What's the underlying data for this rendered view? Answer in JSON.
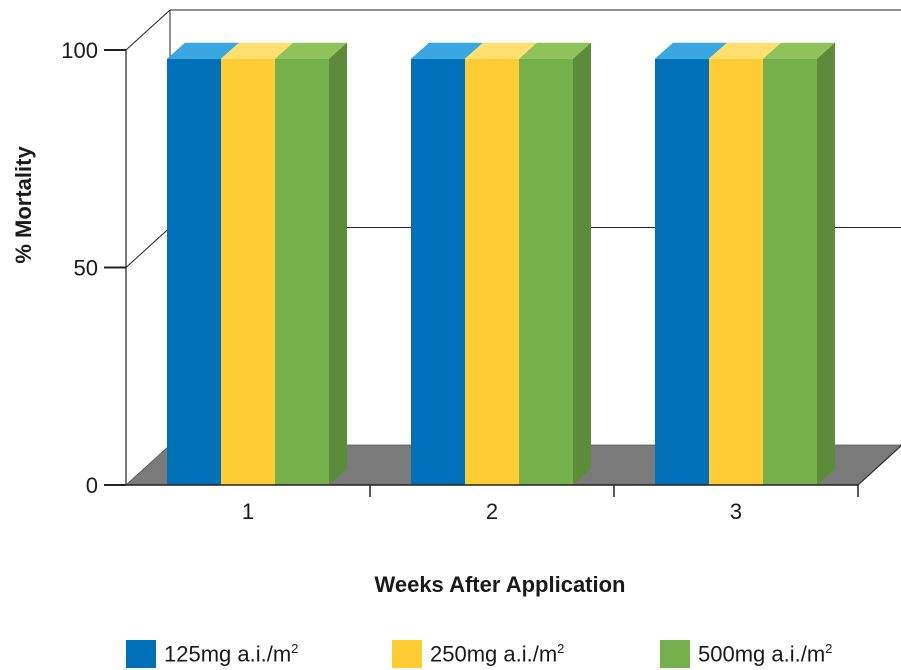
{
  "chart_data": {
    "type": "bar",
    "style": "3d-clustered",
    "categories": [
      "1",
      "2",
      "3"
    ],
    "series": [
      {
        "name": "125mg a.i./m",
        "superscript": "2",
        "values": [
          98,
          98,
          98
        ],
        "color": "#0071b8",
        "top_color": "#3ba7e0",
        "side_color": "#00558c"
      },
      {
        "name": "250mg a.i./m",
        "superscript": "2",
        "values": [
          98,
          98,
          98
        ],
        "color": "#ffcc33",
        "top_color": "#ffdf70",
        "side_color": "#e0b020"
      },
      {
        "name": "500mg a.i./m",
        "superscript": "2",
        "values": [
          98,
          98,
          98
        ],
        "color": "#76b04c",
        "top_color": "#8fc25a",
        "side_color": "#5c8c3a"
      }
    ],
    "ylabel": "% Mortality",
    "xlabel": "Weeks After Application",
    "ylim": [
      0,
      100
    ],
    "yticks": [
      0,
      50,
      100
    ],
    "grid": true,
    "legend_position": "bottom",
    "floor_color": "#7a7a7a"
  }
}
